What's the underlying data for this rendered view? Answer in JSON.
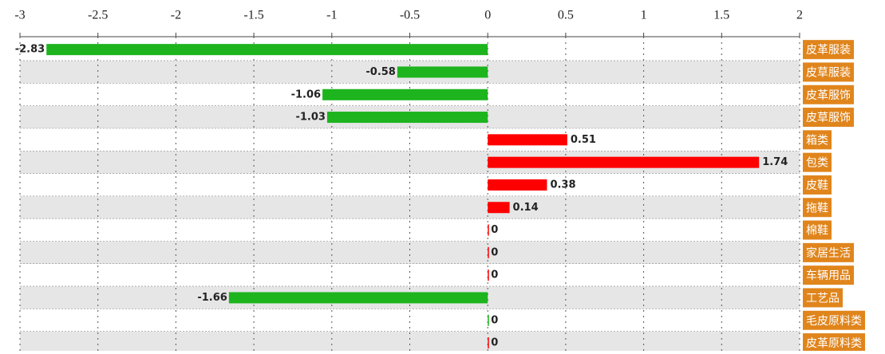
{
  "chart_data": {
    "type": "hbar",
    "categories": [
      "皮革服装",
      "皮草服装",
      "皮革服饰",
      "皮草服饰",
      "箱类",
      "包类",
      "皮鞋",
      "拖鞋",
      "棉鞋",
      "家居生活",
      "车辆用品",
      "工艺品",
      "毛皮原料类",
      "皮革原料类"
    ],
    "values": [
      -2.83,
      -0.58,
      -1.06,
      -1.03,
      0.51,
      1.74,
      0.38,
      0.14,
      0,
      0,
      0,
      -1.66,
      0,
      0
    ],
    "colors": [
      "#1db41d",
      "#1db41d",
      "#1db41d",
      "#1db41d",
      "#ff0000",
      "#ff0000",
      "#ff0000",
      "#ff0000",
      "#ff0000",
      "#ff0000",
      "#ff0000",
      "#1db41d",
      "#1db41d",
      "#ff0000"
    ],
    "label_color": "#e0851c",
    "xlim": [
      -3,
      2
    ],
    "xticks": [
      -3,
      -2.5,
      -2,
      -1.5,
      -1,
      -0.5,
      0,
      0.5,
      1,
      1.5,
      2
    ],
    "grid": true
  }
}
